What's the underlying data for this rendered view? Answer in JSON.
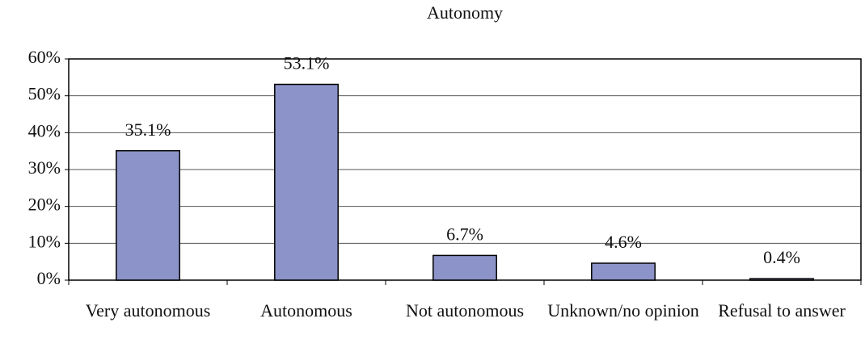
{
  "chart_data": {
    "type": "bar",
    "title": "Autonomy",
    "categories": [
      "Very autonomous",
      "Autonomous",
      "Not autonomous",
      "Unknown/no opinion",
      "Refusal to answer"
    ],
    "values": [
      35.1,
      53.1,
      6.7,
      4.6,
      0.4
    ],
    "value_labels": [
      "35.1%",
      "53.1%",
      "6.7%",
      "4.6%",
      "0.4%"
    ],
    "color": "#8b93c8",
    "ylim": [
      0,
      60
    ],
    "yticks": [
      {
        "value": 0,
        "label": "0%"
      },
      {
        "value": 10,
        "label": "10%"
      },
      {
        "value": 20,
        "label": "20%"
      },
      {
        "value": 30,
        "label": "30%"
      },
      {
        "value": 40,
        "label": "40%"
      },
      {
        "value": 50,
        "label": "50%"
      },
      {
        "value": 60,
        "label": "60%"
      }
    ],
    "grid": true
  }
}
